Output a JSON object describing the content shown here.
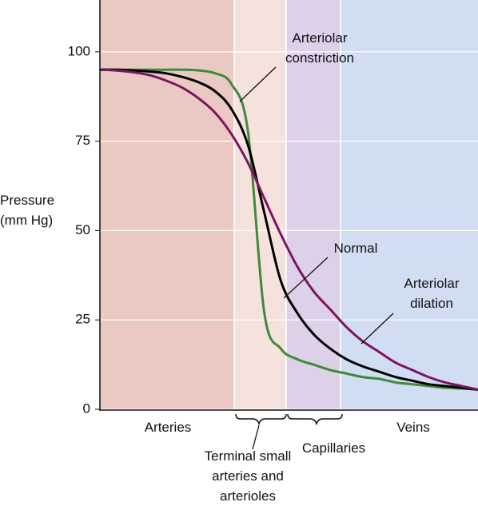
{
  "chart_data": {
    "type": "line",
    "y_label": "Pressure (mm Hg)",
    "categories": [
      null,
      null,
      null,
      null,
      null,
      null,
      null,
      null,
      null,
      null,
      null,
      null,
      null,
      null,
      null,
      null,
      null,
      null,
      null,
      null,
      null,
      null,
      null,
      null
    ],
    "series": [
      {
        "name": "Arteriolar constriction",
        "color": "#3f8a3a",
        "values": [
          95,
          95,
          95,
          95,
          95,
          95,
          94.8,
          94,
          91,
          78,
          27,
          17,
          14,
          12.5,
          11,
          10,
          9,
          8.5,
          7.5,
          7,
          6.5,
          6,
          5.8,
          5.5
        ]
      },
      {
        "name": "Normal",
        "color": "#000000",
        "values": [
          95,
          95,
          94.8,
          94.5,
          94,
          93,
          91.5,
          89,
          84,
          74,
          55,
          36,
          27,
          21,
          17,
          14,
          12,
          10.5,
          9,
          8,
          7,
          6.5,
          6,
          5.5
        ]
      },
      {
        "name": "Arteriolar dilation",
        "color": "#7d1463",
        "values": [
          95,
          94.8,
          94.3,
          93.5,
          92,
          90,
          87,
          83,
          77,
          69,
          59,
          49,
          40,
          33,
          28,
          23,
          19,
          16,
          13,
          11,
          9,
          7.5,
          6.5,
          5.5
        ]
      }
    ],
    "regions": [
      {
        "label": "Arteries",
        "color": "#e9c9c1"
      },
      {
        "label": "Terminal small arteries and arterioles",
        "color": "#f6e2dd"
      },
      {
        "label": "Capillaries",
        "color": "#ddd1e9"
      },
      {
        "label": "Veins",
        "color": "#d1ddf3"
      }
    ],
    "ylim": [
      0,
      114.5
    ],
    "yticks": [
      0,
      25,
      50,
      75,
      100
    ],
    "grid": true
  }
}
